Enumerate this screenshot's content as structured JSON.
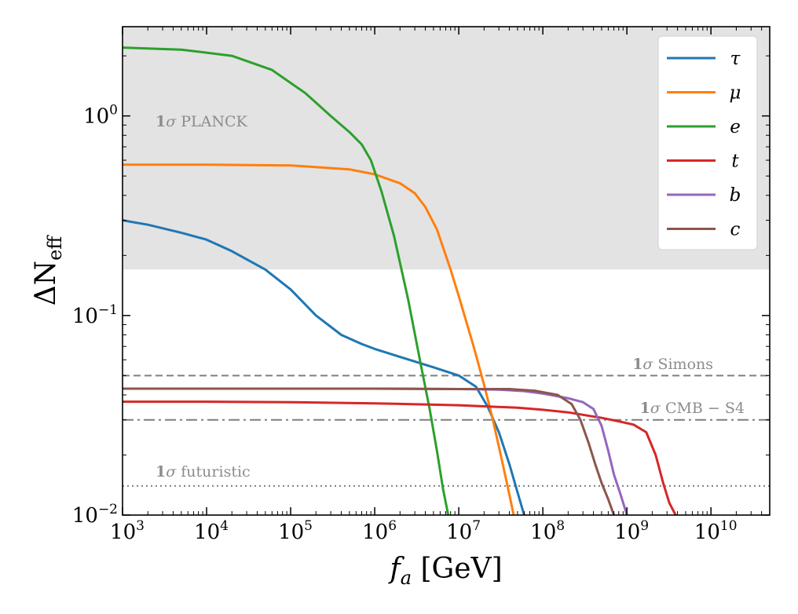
{
  "chart_data": {
    "type": "line",
    "xscale": "log",
    "yscale": "log",
    "xlim": [
      1000,
      50000000000
    ],
    "ylim": [
      0.01,
      2.8
    ],
    "xlabel_main": "f",
    "xlabel_sub": "a",
    "xlabel_unit": "[GeV]",
    "ylabel_prefix": "ΔN",
    "ylabel_sub": "eff",
    "x_ticks": [
      {
        "base": "10",
        "exp": "3",
        "value": 1000
      },
      {
        "base": "10",
        "exp": "4",
        "value": 10000
      },
      {
        "base": "10",
        "exp": "5",
        "value": 100000
      },
      {
        "base": "10",
        "exp": "6",
        "value": 1000000
      },
      {
        "base": "10",
        "exp": "7",
        "value": 10000000
      },
      {
        "base": "10",
        "exp": "8",
        "value": 100000000
      },
      {
        "base": "10",
        "exp": "9",
        "value": 1000000000
      },
      {
        "base": "10",
        "exp": "10",
        "value": 10000000000
      }
    ],
    "y_ticks": [
      {
        "base": "10",
        "exp": "−2",
        "value": 0.01
      },
      {
        "base": "10",
        "exp": "−1",
        "value": 0.1
      },
      {
        "base": "10",
        "exp": "0",
        "value": 1
      }
    ],
    "shaded_region": {
      "label_bold": "1",
      "label_sigma": "σ",
      "label_text": "PLANCK",
      "ymin": 0.17,
      "color": "#e3e3e3"
    },
    "reference_lines": [
      {
        "label_bold": "1",
        "label_sigma": "σ",
        "label_text": "Simons",
        "y": 0.05,
        "style": "dashed"
      },
      {
        "label_bold": "1",
        "label_sigma": "σ",
        "label_text": "CMB − S4",
        "y": 0.03,
        "style": "dashdot"
      },
      {
        "label_bold": "1",
        "label_sigma": "σ",
        "label_text": "futuristic",
        "y": 0.014,
        "style": "dotted"
      }
    ],
    "legend_position": "top-right",
    "series": [
      {
        "name": "τ",
        "color": "#1f77b4",
        "x": [
          1000,
          2000,
          5000,
          10000,
          20000,
          50000,
          100000,
          200000,
          400000,
          700000,
          1000000,
          2000000,
          5000000,
          10000000,
          16000000,
          22000000,
          30000000,
          40000000,
          50000000,
          60000000
        ],
        "y": [
          0.3,
          0.285,
          0.26,
          0.24,
          0.21,
          0.17,
          0.135,
          0.1,
          0.08,
          0.072,
          0.068,
          0.062,
          0.055,
          0.05,
          0.044,
          0.035,
          0.026,
          0.018,
          0.013,
          0.01
        ]
      },
      {
        "name": "μ",
        "color": "#ff7f0e",
        "x": [
          1000,
          10000,
          100000,
          500000,
          1000000,
          2000000,
          3000000,
          4000000,
          5500000,
          8000000,
          10000000,
          15000000,
          20000000,
          25000000,
          30000000,
          38000000,
          45000000
        ],
        "y": [
          0.57,
          0.57,
          0.565,
          0.54,
          0.51,
          0.46,
          0.41,
          0.35,
          0.27,
          0.17,
          0.125,
          0.07,
          0.045,
          0.031,
          0.022,
          0.014,
          0.01
        ]
      },
      {
        "name": "e",
        "color": "#2ca02c",
        "x": [
          1000,
          5000,
          20000,
          60000,
          150000,
          300000,
          500000,
          700000,
          900000,
          1200000,
          1700000,
          2500000,
          3500000,
          4500000,
          5500000,
          6500000,
          7500000
        ],
        "y": [
          2.2,
          2.15,
          2.0,
          1.7,
          1.3,
          1.0,
          0.83,
          0.72,
          0.6,
          0.42,
          0.25,
          0.12,
          0.058,
          0.034,
          0.021,
          0.0135,
          0.01
        ]
      },
      {
        "name": "t",
        "color": "#d62728",
        "x": [
          1000,
          10000,
          100000,
          1000000,
          10000000,
          50000000,
          100000000,
          200000000,
          500000000,
          800000000,
          1200000000,
          1700000000,
          2200000000,
          2700000000,
          3200000000,
          3800000000
        ],
        "y": [
          0.037,
          0.037,
          0.0368,
          0.0363,
          0.0355,
          0.0345,
          0.0337,
          0.0327,
          0.0307,
          0.0295,
          0.0284,
          0.026,
          0.02,
          0.0145,
          0.0115,
          0.01
        ]
      },
      {
        "name": "b",
        "color": "#9467bd",
        "x": [
          1000,
          10000,
          100000,
          1000000,
          10000000,
          30000000,
          60000000,
          100000000,
          200000000,
          300000000,
          400000000,
          500000000,
          600000000,
          700000000,
          850000000,
          1000000000
        ],
        "y": [
          0.043,
          0.043,
          0.043,
          0.043,
          0.0428,
          0.0425,
          0.0418,
          0.0406,
          0.0385,
          0.0368,
          0.034,
          0.028,
          0.021,
          0.016,
          0.0125,
          0.01
        ]
      },
      {
        "name": "c",
        "color": "#8c564b",
        "x": [
          1000,
          10000,
          100000,
          1000000,
          10000000,
          40000000,
          80000000,
          150000000,
          220000000,
          280000000,
          350000000,
          420000000,
          500000000,
          600000000,
          700000000
        ],
        "y": [
          0.043,
          0.043,
          0.043,
          0.043,
          0.0428,
          0.0428,
          0.042,
          0.04,
          0.036,
          0.03,
          0.023,
          0.018,
          0.0145,
          0.012,
          0.01
        ]
      }
    ]
  }
}
